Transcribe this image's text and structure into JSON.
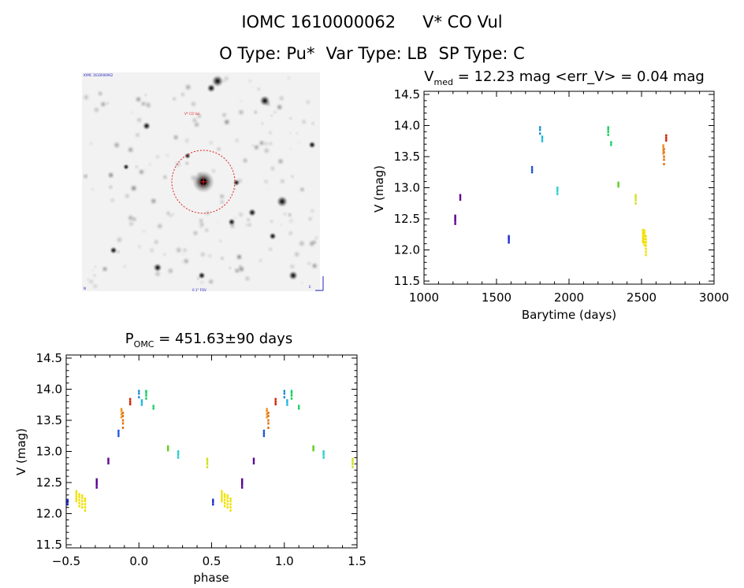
{
  "header": {
    "catalog_id": "IOMC 1610000062",
    "star_name": "V* CO Vul",
    "o_type": "O Type: Pu*",
    "var_type": "Var Type: LB",
    "sp_type": "SP Type: C"
  },
  "thumbnail": {
    "label_top_left": "IOMC 1610000062",
    "label_target": "V* CO Vul",
    "label_bottom_left": "N",
    "label_bottom_center": "0.1° FOV",
    "label_bottom_right": "E"
  },
  "chart_data": [
    {
      "type": "scatter",
      "title_main": "V",
      "title_sub": "med",
      "title_rest": " = 12.23 mag <err_V> = 0.04 mag",
      "xlabel": "Barytime (days)",
      "ylabel": "V (mag)",
      "xlim": [
        1000,
        3000
      ],
      "ylim": [
        14.55,
        11.45
      ],
      "yreversed": true,
      "xticks": [
        "1000",
        "1500",
        "2000",
        "2500",
        "3000"
      ],
      "yticks": [
        "11.5",
        "12.0",
        "12.5",
        "13.0",
        "13.5",
        "14.0",
        "14.5"
      ],
      "groups": [
        {
          "x": 1215,
          "y": [
            12.42,
            12.46,
            12.49,
            12.52,
            12.55
          ],
          "color": "#5c0090"
        },
        {
          "x": 1250,
          "y": [
            12.81,
            12.85,
            12.88
          ],
          "color": "#5c0090"
        },
        {
          "x": 1585,
          "y": [
            12.12,
            12.16,
            12.19,
            12.22
          ],
          "color": "#1a2ccc"
        },
        {
          "x": 1745,
          "y": [
            13.25,
            13.29,
            13.33
          ],
          "color": "#1a50d8"
        },
        {
          "x": 1800,
          "y": [
            13.87,
            13.93,
            13.97
          ],
          "color": "#1a90d8"
        },
        {
          "x": 1815,
          "y": [
            13.75,
            13.79,
            13.82
          ],
          "color": "#20b8e0"
        },
        {
          "x": 1920,
          "y": [
            12.9,
            12.94,
            12.97,
            13.0
          ],
          "color": "#30d0d0"
        },
        {
          "x": 2270,
          "y": [
            13.85,
            13.9,
            13.94,
            13.97
          ],
          "color": "#18d060"
        },
        {
          "x": 2290,
          "y": [
            13.69,
            13.73
          ],
          "color": "#18d060"
        },
        {
          "x": 2340,
          "y": [
            13.02,
            13.05,
            13.08
          ],
          "color": "#60d020"
        },
        {
          "x": 2460,
          "y": [
            12.75,
            12.8,
            12.84,
            12.88
          ],
          "color": "#d0e020"
        },
        {
          "x": 2510,
          "y": [
            12.12,
            12.16,
            12.2,
            12.24,
            12.28,
            12.32
          ],
          "color": "#f0e000"
        },
        {
          "x": 2520,
          "y": [
            12.08,
            12.13,
            12.18,
            12.23,
            12.27,
            12.31
          ],
          "color": "#f0e000"
        },
        {
          "x": 2530,
          "y": [
            11.92,
            11.97,
            12.02,
            12.07,
            12.12,
            12.17,
            12.22
          ],
          "color": "#f0e000"
        },
        {
          "x": 2650,
          "y": [
            13.55,
            13.6,
            13.65,
            13.68
          ],
          "color": "#f09020"
        },
        {
          "x": 2655,
          "y": [
            13.38,
            13.45,
            13.5,
            13.57,
            13.62
          ],
          "color": "#e07010"
        },
        {
          "x": 2670,
          "y": [
            13.76,
            13.8,
            13.84
          ],
          "color": "#d02000"
        }
      ]
    },
    {
      "type": "scatter",
      "title_main": "P",
      "title_sub": "OMC",
      "title_rest": " = 451.63±90 days",
      "xlabel": "phase",
      "ylabel": "V (mag)",
      "xlim": [
        -0.5,
        1.5
      ],
      "ylim": [
        14.55,
        11.45
      ],
      "yreversed": true,
      "xticks": [
        "−0.5",
        "0.0",
        "0.5",
        "1.0",
        "1.5"
      ],
      "yticks": [
        "11.5",
        "12.0",
        "12.5",
        "13.0",
        "13.5",
        "14.0",
        "14.5"
      ],
      "groups": [
        {
          "x": -0.49,
          "y": [
            12.15,
            12.19,
            12.22
          ],
          "color": "#1a2ccc"
        },
        {
          "x": -0.43,
          "y": [
            12.2,
            12.24,
            12.28,
            12.32,
            12.36
          ],
          "color": "#f0e000"
        },
        {
          "x": -0.41,
          "y": [
            12.12,
            12.17,
            12.22,
            12.27,
            12.31
          ],
          "color": "#f0e000"
        },
        {
          "x": -0.39,
          "y": [
            12.1,
            12.15,
            12.2,
            12.25,
            12.29
          ],
          "color": "#f0e000"
        },
        {
          "x": -0.37,
          "y": [
            12.05,
            12.1,
            12.15,
            12.2,
            12.24
          ],
          "color": "#f0e000"
        },
        {
          "x": -0.29,
          "y": [
            12.42,
            12.46,
            12.49,
            12.52,
            12.55
          ],
          "color": "#5c0090"
        },
        {
          "x": -0.21,
          "y": [
            12.81,
            12.85,
            12.88
          ],
          "color": "#5c0090"
        },
        {
          "x": -0.14,
          "y": [
            13.25,
            13.29,
            13.33
          ],
          "color": "#1a50d8"
        },
        {
          "x": -0.12,
          "y": [
            13.55,
            13.6,
            13.65,
            13.68
          ],
          "color": "#f09020"
        },
        {
          "x": -0.11,
          "y": [
            13.38,
            13.45,
            13.5,
            13.57,
            13.62
          ],
          "color": "#e07010"
        },
        {
          "x": -0.06,
          "y": [
            13.76,
            13.8,
            13.84
          ],
          "color": "#d02000"
        },
        {
          "x": 0.0,
          "y": [
            13.87,
            13.93,
            13.97
          ],
          "color": "#1a90d8"
        },
        {
          "x": 0.02,
          "y": [
            13.75,
            13.79,
            13.82
          ],
          "color": "#20b8e0"
        },
        {
          "x": 0.05,
          "y": [
            13.85,
            13.9,
            13.94,
            13.97
          ],
          "color": "#18d060"
        },
        {
          "x": 0.1,
          "y": [
            13.69,
            13.73
          ],
          "color": "#18d060"
        },
        {
          "x": 0.2,
          "y": [
            13.02,
            13.05,
            13.08
          ],
          "color": "#60d020"
        },
        {
          "x": 0.27,
          "y": [
            12.9,
            12.94,
            12.97,
            13.0
          ],
          "color": "#30d0d0"
        },
        {
          "x": 0.47,
          "y": [
            12.75,
            12.8,
            12.84,
            12.88
          ],
          "color": "#d0e020"
        },
        {
          "x": 0.51,
          "y": [
            12.15,
            12.19,
            12.22
          ],
          "color": "#1a2ccc"
        },
        {
          "x": 0.57,
          "y": [
            12.2,
            12.24,
            12.28,
            12.32,
            12.36
          ],
          "color": "#f0e000"
        },
        {
          "x": 0.59,
          "y": [
            12.12,
            12.17,
            12.22,
            12.27,
            12.31
          ],
          "color": "#f0e000"
        },
        {
          "x": 0.61,
          "y": [
            12.1,
            12.15,
            12.2,
            12.25,
            12.29
          ],
          "color": "#f0e000"
        },
        {
          "x": 0.63,
          "y": [
            12.05,
            12.1,
            12.15,
            12.2,
            12.24
          ],
          "color": "#f0e000"
        },
        {
          "x": 0.71,
          "y": [
            12.42,
            12.46,
            12.49,
            12.52,
            12.55
          ],
          "color": "#5c0090"
        },
        {
          "x": 0.79,
          "y": [
            12.81,
            12.85,
            12.88
          ],
          "color": "#5c0090"
        },
        {
          "x": 0.86,
          "y": [
            13.25,
            13.29,
            13.33
          ],
          "color": "#1a50d8"
        },
        {
          "x": 0.88,
          "y": [
            13.55,
            13.6,
            13.65,
            13.68
          ],
          "color": "#f09020"
        },
        {
          "x": 0.89,
          "y": [
            13.38,
            13.45,
            13.5,
            13.57,
            13.62
          ],
          "color": "#e07010"
        },
        {
          "x": 0.94,
          "y": [
            13.76,
            13.8,
            13.84
          ],
          "color": "#d02000"
        },
        {
          "x": 1.0,
          "y": [
            13.87,
            13.93,
            13.97
          ],
          "color": "#1a90d8"
        },
        {
          "x": 1.02,
          "y": [
            13.75,
            13.79,
            13.82
          ],
          "color": "#20b8e0"
        },
        {
          "x": 1.05,
          "y": [
            13.85,
            13.9,
            13.94,
            13.97
          ],
          "color": "#18d060"
        },
        {
          "x": 1.1,
          "y": [
            13.69,
            13.73
          ],
          "color": "#18d060"
        },
        {
          "x": 1.2,
          "y": [
            13.02,
            13.05,
            13.08
          ],
          "color": "#60d020"
        },
        {
          "x": 1.27,
          "y": [
            12.9,
            12.94,
            12.97,
            13.0
          ],
          "color": "#30d0d0"
        },
        {
          "x": 1.47,
          "y": [
            12.75,
            12.8,
            12.84,
            12.88
          ],
          "color": "#d0e020"
        }
      ]
    }
  ]
}
